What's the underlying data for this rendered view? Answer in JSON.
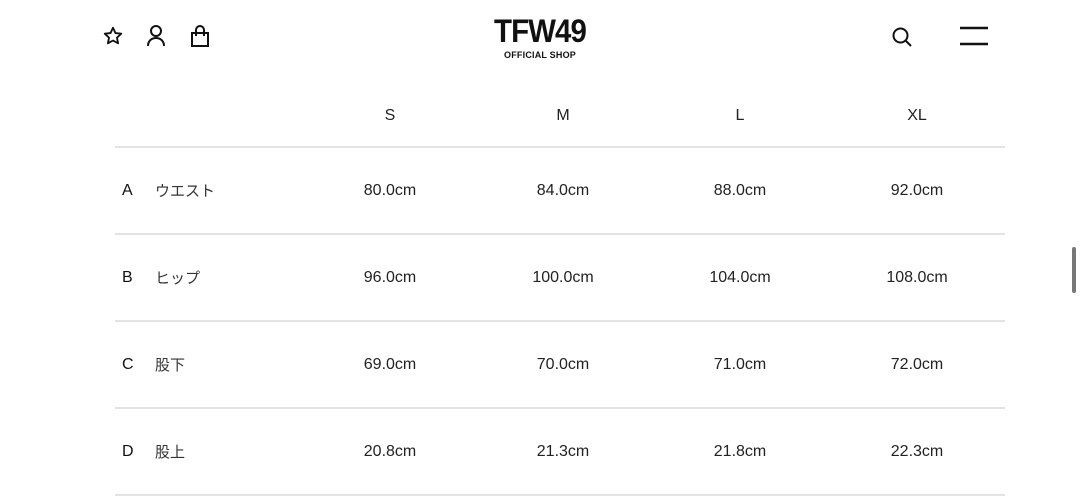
{
  "header": {
    "logo": "TFW49",
    "logo_sub": "OFFICIAL SHOP",
    "icons": [
      "star-icon",
      "user-icon",
      "bag-icon",
      "search-icon",
      "menu-icon"
    ]
  },
  "table": {
    "columns": [
      "S",
      "M",
      "L",
      "XL"
    ],
    "rows": [
      {
        "letter": "A",
        "name": "ウエスト",
        "values": [
          "80.0cm",
          "84.0cm",
          "88.0cm",
          "92.0cm"
        ]
      },
      {
        "letter": "B",
        "name": "ヒップ",
        "values": [
          "96.0cm",
          "100.0cm",
          "104.0cm",
          "108.0cm"
        ]
      },
      {
        "letter": "C",
        "name": "股下",
        "values": [
          "69.0cm",
          "70.0cm",
          "71.0cm",
          "72.0cm"
        ]
      },
      {
        "letter": "D",
        "name": "股上",
        "values": [
          "20.8cm",
          "21.3cm",
          "21.8cm",
          "22.3cm"
        ]
      }
    ]
  }
}
